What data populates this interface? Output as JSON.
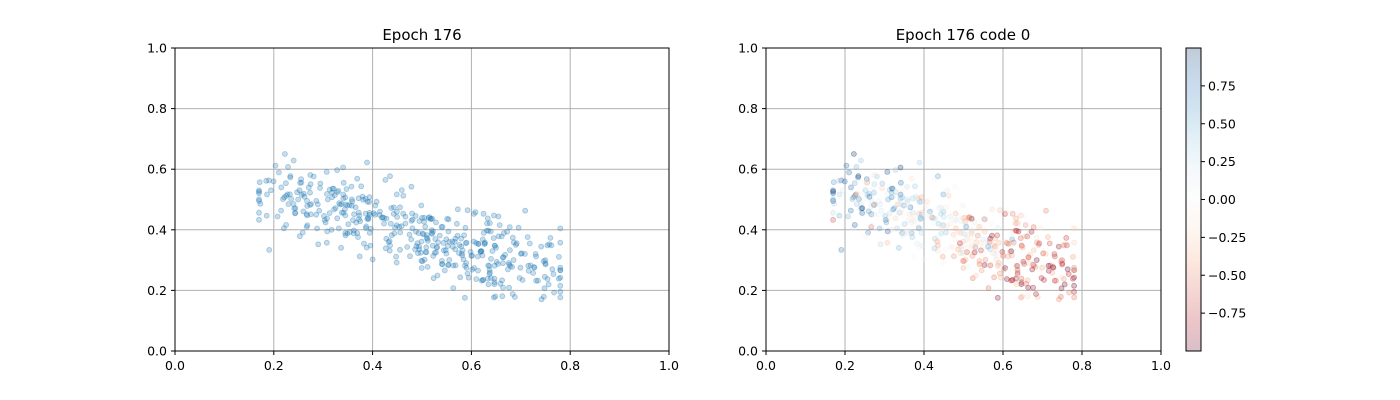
{
  "chart_data": [
    {
      "type": "scatter",
      "title": "Epoch 176",
      "xlim": [
        0.0,
        1.0
      ],
      "ylim": [
        0.0,
        1.0
      ],
      "xticks": [
        "0.0",
        "0.2",
        "0.4",
        "0.6",
        "0.8",
        "1.0"
      ],
      "yticks": [
        "0.0",
        "0.2",
        "0.4",
        "0.6",
        "0.8",
        "1.0"
      ],
      "grid": true,
      "point_color": "#1f77b4",
      "point_alpha": 0.25,
      "point_count": 450,
      "x_range_of_points": [
        0.17,
        0.78
      ],
      "y_range_of_points": [
        0.15,
        0.65
      ]
    },
    {
      "type": "scatter",
      "title": "Epoch 176 code 0",
      "xlim": [
        0.0,
        1.0
      ],
      "ylim": [
        0.0,
        1.0
      ],
      "xticks": [
        "0.0",
        "0.2",
        "0.4",
        "0.6",
        "0.8",
        "1.0"
      ],
      "yticks": [
        "0.0",
        "0.2",
        "0.4",
        "0.6",
        "0.8",
        "1.0"
      ],
      "grid": true,
      "point_alpha": 0.25,
      "colormap": "RdBu",
      "colorbar": {
        "range": [
          -1.0,
          1.0
        ],
        "tick_values": [
          0.75,
          0.5,
          0.25,
          0.0,
          -0.25,
          -0.5,
          -0.75
        ],
        "tick_labels": [
          "0.75",
          "0.50",
          "0.25",
          "0.00",
          "−0.25",
          "−0.50",
          "−0.75"
        ],
        "colors": [
          "#67001f",
          "#b2182b",
          "#d6604d",
          "#f4a582",
          "#fddbc7",
          "#f7f7f7",
          "#d1e5f0",
          "#92c5de",
          "#4393c3",
          "#2166ac",
          "#053061"
        ]
      }
    }
  ]
}
